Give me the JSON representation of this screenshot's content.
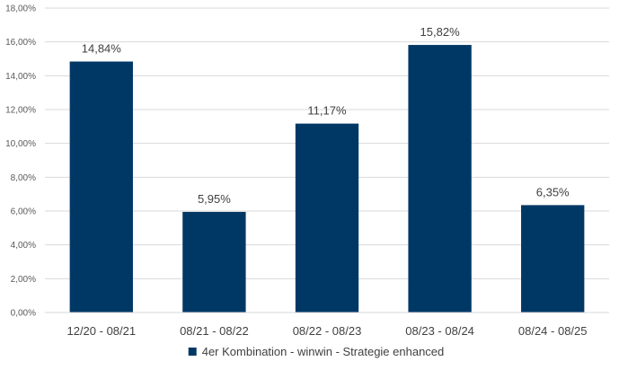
{
  "chart_data": {
    "type": "bar",
    "categories": [
      "12/20 - 08/21",
      "08/21 - 08/22",
      "08/22 - 08/23",
      "08/23 - 08/24",
      "08/24 - 08/25"
    ],
    "series": [
      {
        "name": "4er Kombination - winwin - Strategie enhanced",
        "values": [
          14.84,
          5.95,
          11.17,
          15.82,
          6.35
        ],
        "labels": [
          "14,84%",
          "5,95%",
          "11,17%",
          "15,82%",
          "6,35%"
        ],
        "color": "#003865"
      }
    ],
    "ylim": [
      0,
      18
    ],
    "yticks": [
      0,
      2,
      4,
      6,
      8,
      10,
      12,
      14,
      16,
      18
    ],
    "ytick_labels": [
      "0,00%",
      "2,00%",
      "4,00%",
      "6,00%",
      "8,00%",
      "10,00%",
      "12,00%",
      "14,00%",
      "16,00%",
      "18,00%"
    ],
    "grid": true,
    "gridline_color": "#d9d9d9",
    "legend_position": "bottom",
    "title": "",
    "xlabel": "",
    "ylabel": ""
  }
}
